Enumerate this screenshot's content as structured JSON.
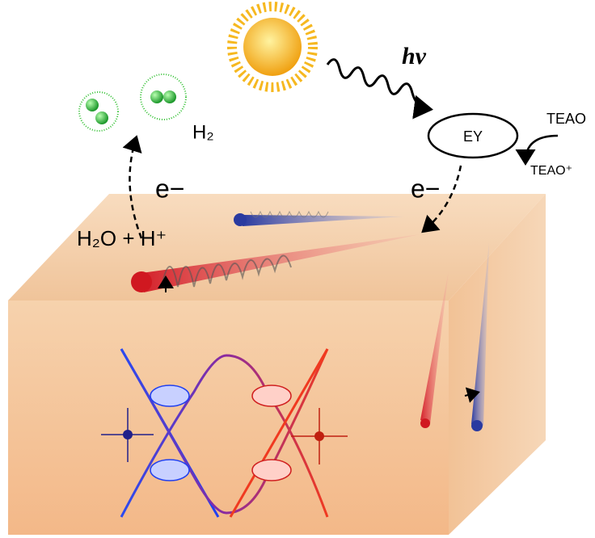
{
  "labels": {
    "photon": "hν",
    "dye": "EY",
    "donor": "TEAO",
    "donor_oxidized": "TEAO⁺",
    "hydrogen": "H₂",
    "electron_right": "e−",
    "electron_left": "e−",
    "reactants": "H₂O + H⁺"
  }
}
